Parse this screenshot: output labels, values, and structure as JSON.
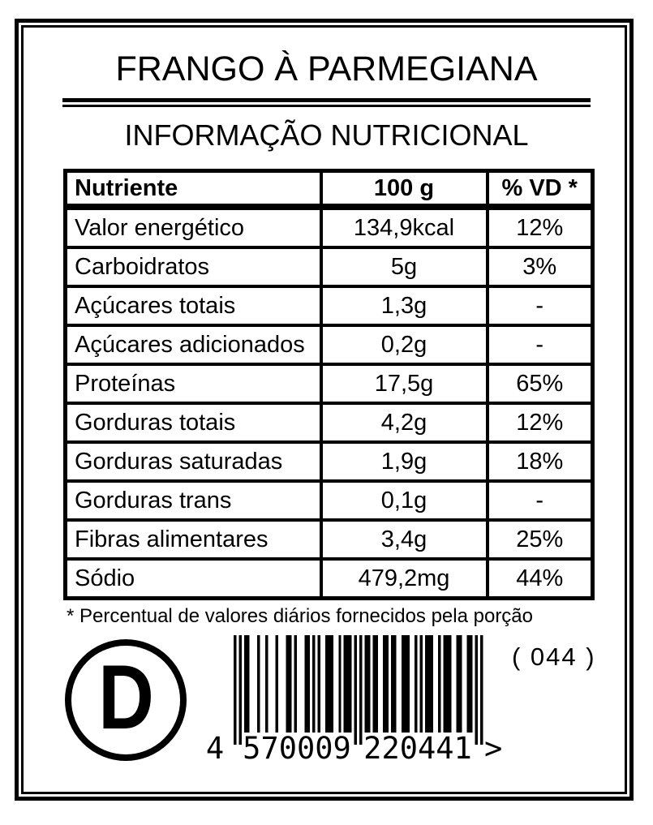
{
  "page": {
    "background": "#ffffff",
    "ink": "#000000"
  },
  "title": "FRANGO À PARMEGIANA",
  "subtitle": "INFORMAÇÃO NUTRICIONAL",
  "table": {
    "headers": [
      "Nutriente",
      "100 g",
      "% VD *"
    ],
    "rows": [
      {
        "nutrient": "Valor energético",
        "amount": "134,9kcal",
        "dv": "12%"
      },
      {
        "nutrient": "Carboidratos",
        "amount": "5g",
        "dv": "3%"
      },
      {
        "nutrient": "Açúcares totais",
        "amount": "1,3g",
        "dv": "-"
      },
      {
        "nutrient": "Açúcares adicionados",
        "amount": "0,2g",
        "dv": "-"
      },
      {
        "nutrient": "Proteínas",
        "amount": "17,5g",
        "dv": "65%"
      },
      {
        "nutrient": "Gorduras totais",
        "amount": "4,2g",
        "dv": "12%"
      },
      {
        "nutrient": "Gorduras saturadas",
        "amount": "1,9g",
        "dv": "18%"
      },
      {
        "nutrient": "Gorduras trans",
        "amount": "0,1g",
        "dv": "-"
      },
      {
        "nutrient": "Fibras alimentares",
        "amount": "3,4g",
        "dv": "25%"
      },
      {
        "nutrient": "Sódio",
        "amount": "479,2mg",
        "dv": "44%"
      }
    ]
  },
  "footnote": "* Percentual de valores diários fornecidos pela porção",
  "stamp_letter": "D",
  "counter": "( 044 )",
  "barcode": {
    "ean13": "4570009220441",
    "digit_first": "4",
    "digit_left": "570009",
    "digit_right": "220441",
    "trailer": ">"
  }
}
